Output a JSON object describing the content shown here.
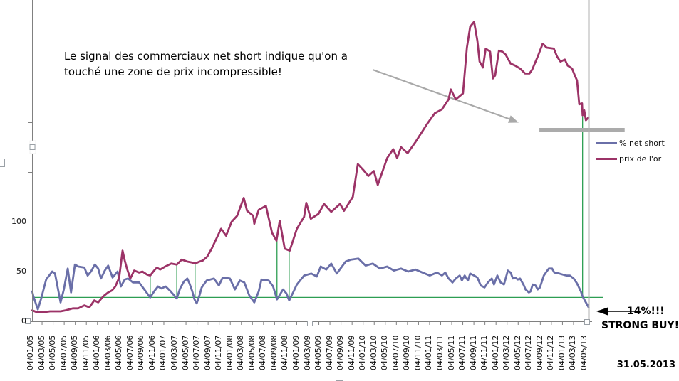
{
  "annotation": {
    "line1": "Le signal des commerciaux net short indique qu'on a",
    "line2": "touché une zone de prix incompressible!"
  },
  "callout": {
    "value_label": "14%!!!",
    "action_label": "STRONG BUY!",
    "date_label": "31.05.2013"
  },
  "legend": {
    "position": "right",
    "items": [
      {
        "label": "% net short",
        "color": "#6A6FA8"
      },
      {
        "label": "prix de l'or",
        "color": "#9C3367"
      }
    ]
  },
  "colors": {
    "net_short_line": "#6A6FA8",
    "gold_line": "#9C3367",
    "signal_green": "#2D9E52",
    "annotation_gray": "#a9a9a9",
    "resistance_gray": "#ababab",
    "axis_gray": "#808080"
  },
  "chart_data": {
    "type": "line",
    "title": "",
    "xlabel": "",
    "ylabel": "",
    "x_axis": {
      "unit": "date (dd/mm/yy), one label every 2 months",
      "labels": [
        "04/01/05",
        "04/03/05",
        "04/05/05",
        "04/07/05",
        "04/09/05",
        "04/11/05",
        "04/01/06",
        "04/03/06",
        "04/05/06",
        "04/07/06",
        "04/09/06",
        "04/11/06",
        "04/01/07",
        "04/03/07",
        "04/05/07",
        "04/07/07",
        "04/09/07",
        "04/11/07",
        "04/01/08",
        "04/03/08",
        "04/05/08",
        "04/07/08",
        "04/09/08",
        "04/11/08",
        "04/01/09",
        "04/03/09",
        "04/05/09",
        "04/07/09",
        "04/09/09",
        "04/11/09",
        "04/01/10",
        "04/03/10",
        "04/05/10",
        "04/07/10",
        "04/09/10",
        "04/11/10",
        "04/01/11",
        "04/03/11",
        "04/05/11",
        "04/07/11",
        "04/09/11",
        "04/11/11",
        "04/01/12",
        "04/03/12",
        "04/05/12",
        "04/07/12",
        "04/09/12",
        "04/11/12",
        "04/01/13",
        "04/03/13",
        "04/05/13"
      ]
    },
    "y_axis": {
      "labeled_ticks": [
        0,
        50,
        100
      ],
      "tick_values": [
        0,
        50,
        100,
        150,
        200,
        250,
        300
      ],
      "range": [
        0,
        310
      ],
      "grid": false
    },
    "series": [
      {
        "name": "% net short",
        "color": "#6A6FA8",
        "points": [
          [
            0.3,
            30
          ],
          [
            0.5,
            25
          ],
          [
            1.3,
            12
          ],
          [
            1.9,
            23
          ],
          [
            2.8,
            42
          ],
          [
            3.9,
            50
          ],
          [
            4.4,
            48
          ],
          [
            5.4,
            19
          ],
          [
            6,
            32
          ],
          [
            6.7,
            53
          ],
          [
            7.3,
            29
          ],
          [
            8,
            57
          ],
          [
            8.6,
            55
          ],
          [
            9.7,
            54
          ],
          [
            10.3,
            46
          ],
          [
            10.9,
            50
          ],
          [
            11.6,
            57
          ],
          [
            12.2,
            53
          ],
          [
            12.7,
            43
          ],
          [
            13.4,
            51
          ],
          [
            14,
            56
          ],
          [
            14.8,
            44
          ],
          [
            15.7,
            50
          ],
          [
            16.3,
            35
          ],
          [
            17,
            42
          ],
          [
            17.6,
            43
          ],
          [
            18.5,
            39
          ],
          [
            19.6,
            39
          ],
          [
            20.8,
            30
          ],
          [
            21.6,
            24
          ],
          [
            22.3,
            30
          ],
          [
            23,
            35
          ],
          [
            23.6,
            33
          ],
          [
            24.4,
            35
          ],
          [
            25.3,
            30
          ],
          [
            26.4,
            23
          ],
          [
            27,
            33
          ],
          [
            27.7,
            40
          ],
          [
            28.3,
            43
          ],
          [
            28.7,
            38
          ],
          [
            29.2,
            30
          ],
          [
            29.6,
            22
          ],
          [
            30,
            18
          ],
          [
            30.5,
            26
          ],
          [
            30.9,
            34
          ],
          [
            31.8,
            41
          ],
          [
            33.1,
            43
          ],
          [
            34,
            36
          ],
          [
            34.7,
            44
          ],
          [
            36,
            43
          ],
          [
            36.9,
            32
          ],
          [
            37.8,
            41
          ],
          [
            38.6,
            39
          ],
          [
            39.5,
            26
          ],
          [
            40.4,
            19
          ],
          [
            41.2,
            30
          ],
          [
            41.7,
            42
          ],
          [
            43,
            41
          ],
          [
            43.8,
            35
          ],
          [
            44.5,
            22
          ],
          [
            45.6,
            32
          ],
          [
            46.2,
            28
          ],
          [
            46.7,
            21
          ],
          [
            47.5,
            30
          ],
          [
            48.1,
            37
          ],
          [
            49.4,
            46
          ],
          [
            50.7,
            48
          ],
          [
            51.7,
            45
          ],
          [
            52.4,
            55
          ],
          [
            53.4,
            52
          ],
          [
            54.3,
            58
          ],
          [
            55.3,
            48
          ],
          [
            56.9,
            60
          ],
          [
            57.9,
            62
          ],
          [
            59.2,
            63
          ],
          [
            60.5,
            56
          ],
          [
            61.8,
            58
          ],
          [
            63.1,
            53
          ],
          [
            64.4,
            55
          ],
          [
            65.6,
            51
          ],
          [
            66.9,
            53
          ],
          [
            68.2,
            50
          ],
          [
            69.5,
            52
          ],
          [
            70.8,
            49
          ],
          [
            72.1,
            46
          ],
          [
            73.4,
            49
          ],
          [
            74.3,
            46
          ],
          [
            74.9,
            49
          ],
          [
            75.5,
            43
          ],
          [
            76.2,
            39
          ],
          [
            76.8,
            43
          ],
          [
            77.5,
            46
          ],
          [
            77.9,
            41
          ],
          [
            78.4,
            46
          ],
          [
            79,
            41
          ],
          [
            79.4,
            48
          ],
          [
            80.1,
            46
          ],
          [
            80.7,
            44
          ],
          [
            81.3,
            36
          ],
          [
            82,
            34
          ],
          [
            82.6,
            39
          ],
          [
            83.3,
            43
          ],
          [
            83.7,
            37
          ],
          [
            84.3,
            46
          ],
          [
            84.9,
            39
          ],
          [
            85.5,
            37
          ],
          [
            85.8,
            43
          ],
          [
            86.2,
            51
          ],
          [
            86.7,
            49
          ],
          [
            87.1,
            43
          ],
          [
            87.5,
            44
          ],
          [
            88,
            42
          ],
          [
            88.4,
            43
          ],
          [
            89.1,
            36
          ],
          [
            89.4,
            32
          ],
          [
            90,
            29
          ],
          [
            90.3,
            30
          ],
          [
            90.7,
            37
          ],
          [
            91.2,
            36
          ],
          [
            91.6,
            32
          ],
          [
            92,
            34
          ],
          [
            92.7,
            46
          ],
          [
            93.2,
            50
          ],
          [
            93.6,
            53
          ],
          [
            94.2,
            53
          ],
          [
            94.6,
            49
          ],
          [
            95.5,
            48
          ],
          [
            96.1,
            47
          ],
          [
            96.8,
            46
          ],
          [
            97.4,
            46
          ],
          [
            98.1,
            43
          ],
          [
            98.7,
            38
          ],
          [
            99.4,
            30
          ],
          [
            99.7,
            25
          ],
          [
            100.3,
            19
          ],
          [
            100.8,
            14
          ]
        ]
      },
      {
        "name": "prix de l'or",
        "color": "#9C3367",
        "points": [
          [
            0.3,
            11
          ],
          [
            1.2,
            9
          ],
          [
            2.2,
            9
          ],
          [
            3.5,
            10
          ],
          [
            4.5,
            10
          ],
          [
            5.4,
            10
          ],
          [
            6.3,
            11
          ],
          [
            7.6,
            13
          ],
          [
            8.6,
            13
          ],
          [
            9.7,
            16
          ],
          [
            10.6,
            14
          ],
          [
            11.5,
            21
          ],
          [
            12.2,
            19
          ],
          [
            13.1,
            25
          ],
          [
            14,
            29
          ],
          [
            14.7,
            31
          ],
          [
            15.3,
            35
          ],
          [
            16,
            44
          ],
          [
            16.6,
            71
          ],
          [
            17,
            61
          ],
          [
            17.4,
            53
          ],
          [
            18,
            43
          ],
          [
            18.7,
            51
          ],
          [
            19.6,
            49
          ],
          [
            20.2,
            50
          ],
          [
            21,
            47
          ],
          [
            21.6,
            46
          ],
          [
            22.3,
            51
          ],
          [
            22.8,
            54
          ],
          [
            23.4,
            52
          ],
          [
            24.3,
            55
          ],
          [
            25.4,
            58
          ],
          [
            26.4,
            57
          ],
          [
            27.3,
            62
          ],
          [
            28.3,
            60
          ],
          [
            29.2,
            59
          ],
          [
            29.7,
            58
          ],
          [
            30.5,
            60
          ],
          [
            31.1,
            61
          ],
          [
            31.9,
            65
          ],
          [
            32.7,
            73
          ],
          [
            34.4,
            93
          ],
          [
            35.3,
            86
          ],
          [
            36.3,
            100
          ],
          [
            37.3,
            106
          ],
          [
            38.5,
            124
          ],
          [
            39.1,
            111
          ],
          [
            40.2,
            106
          ],
          [
            40.4,
            98
          ],
          [
            41.2,
            112
          ],
          [
            42.5,
            116
          ],
          [
            43.6,
            89
          ],
          [
            44.4,
            81
          ],
          [
            45,
            101
          ],
          [
            45.9,
            73
          ],
          [
            46.8,
            71
          ],
          [
            48.1,
            93
          ],
          [
            49.4,
            105
          ],
          [
            49.8,
            119
          ],
          [
            50.6,
            103
          ],
          [
            52,
            108
          ],
          [
            53,
            118
          ],
          [
            54.3,
            110
          ],
          [
            55.9,
            118
          ],
          [
            56.6,
            111
          ],
          [
            58.2,
            125
          ],
          [
            59.1,
            158
          ],
          [
            60.1,
            152
          ],
          [
            61,
            146
          ],
          [
            62,
            151
          ],
          [
            62.7,
            137
          ],
          [
            64.4,
            164
          ],
          [
            65.5,
            173
          ],
          [
            66.2,
            164
          ],
          [
            66.9,
            175
          ],
          [
            68.1,
            169
          ],
          [
            69.5,
            180
          ],
          [
            71.7,
            199
          ],
          [
            73,
            209
          ],
          [
            74.3,
            213
          ],
          [
            75.5,
            223
          ],
          [
            75.9,
            233
          ],
          [
            76.8,
            223
          ],
          [
            78.1,
            229
          ],
          [
            78.8,
            275
          ],
          [
            79.4,
            296
          ],
          [
            80.1,
            301
          ],
          [
            80.7,
            282
          ],
          [
            81.1,
            261
          ],
          [
            81.7,
            255
          ],
          [
            82.2,
            274
          ],
          [
            83,
            271
          ],
          [
            83.5,
            244
          ],
          [
            83.9,
            247
          ],
          [
            84.6,
            272
          ],
          [
            85.2,
            271
          ],
          [
            85.8,
            268
          ],
          [
            86.7,
            259
          ],
          [
            87.5,
            257
          ],
          [
            88.4,
            254
          ],
          [
            89.3,
            249
          ],
          [
            90.1,
            249
          ],
          [
            90.6,
            253
          ],
          [
            91.6,
            266
          ],
          [
            92.5,
            279
          ],
          [
            93.2,
            275
          ],
          [
            94.5,
            274
          ],
          [
            95.1,
            266
          ],
          [
            95.7,
            261
          ],
          [
            96.5,
            263
          ],
          [
            97,
            257
          ],
          [
            97.8,
            254
          ],
          [
            98.3,
            247
          ],
          [
            98.7,
            242
          ],
          [
            99.1,
            218
          ],
          [
            99.6,
            219
          ],
          [
            99.7,
            207
          ],
          [
            100,
            212
          ],
          [
            100.3,
            202
          ],
          [
            100.8,
            205
          ]
        ]
      }
    ],
    "signals": {
      "description": "green buy-signal markers",
      "color": "#2D9E52",
      "threshold_level": 24,
      "threshold_line_to_month": 103.4,
      "buy_signals": [
        {
          "month": 21.6,
          "top_value": 46
        },
        {
          "month": 26.4,
          "top_value": 57
        },
        {
          "month": 29.7,
          "top_value": 58
        },
        {
          "month": 44.5,
          "top_value": 84
        },
        {
          "month": 46.7,
          "top_value": 71
        },
        {
          "month": 99.7,
          "top_value": 206
        }
      ]
    },
    "resistance_bar": {
      "value": 192.5,
      "from_month": 91.9,
      "to_month": 107.3,
      "color": "#ababab"
    }
  }
}
